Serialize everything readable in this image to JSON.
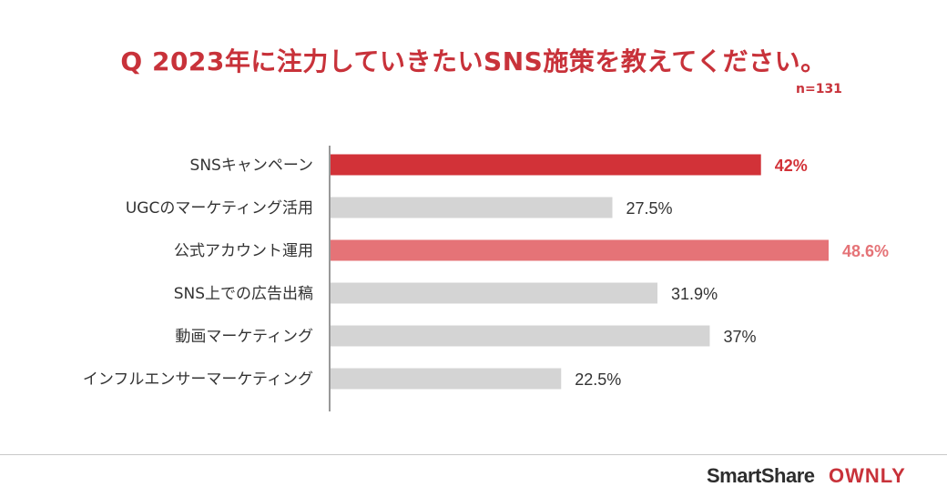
{
  "title": "Q 2023年に注力していきたいSNS施策を教えてください。",
  "sample_size": "n=131",
  "colors": {
    "title": "#c8323a",
    "top_bar": "#d23238",
    "second_bar": "#e57377",
    "other_bars": "#d4d4d4",
    "other_labels": "#333333"
  },
  "chart_data": {
    "type": "bar",
    "orientation": "horizontal",
    "categories": [
      "SNSキャンペーン",
      "UGCのマーケティング活用",
      "公式アカウント運用",
      "SNS上での広告出稿",
      "動画マーケティング",
      "インフルエンサーマーケティング"
    ],
    "values": [
      42,
      27.5,
      48.6,
      31.9,
      37,
      22.5
    ],
    "value_labels": [
      "42%",
      "27.5%",
      "48.6%",
      "31.9%",
      "37%",
      "22.5%"
    ],
    "unit": "%",
    "xlim": [
      0,
      50
    ],
    "grid": false,
    "legend": "none"
  },
  "logo": {
    "brand": "SmartShare",
    "product": "OWNLY"
  }
}
